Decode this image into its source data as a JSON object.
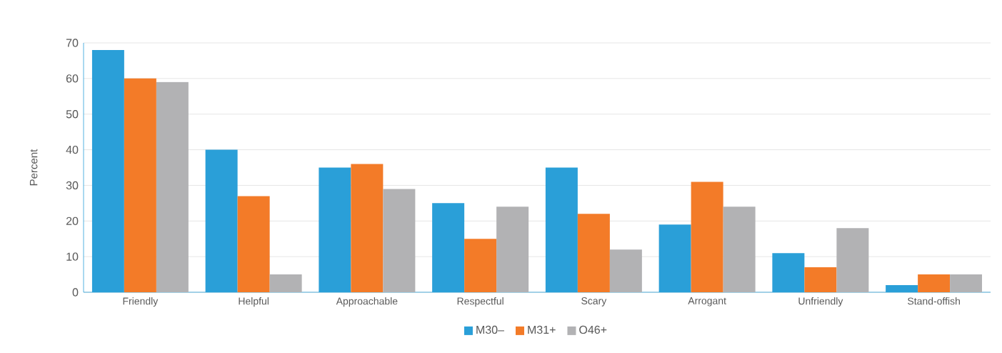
{
  "chart_data": {
    "type": "bar",
    "ylabel": "Percent",
    "categories": [
      "Friendly",
      "Helpful",
      "Approachable",
      "Respectful",
      "Scary",
      "Arrogant",
      "Unfriendly",
      "Stand-offish"
    ],
    "series": [
      {
        "name": "M30–",
        "color": "#2a9fd8",
        "values": [
          68,
          40,
          35,
          25,
          35,
          19,
          11,
          2
        ]
      },
      {
        "name": "M31+",
        "color": "#f37b28",
        "values": [
          60,
          27,
          36,
          15,
          22,
          31,
          7,
          5
        ]
      },
      {
        "name": "O46+",
        "color": "#b2b2b4",
        "values": [
          59,
          5,
          29,
          24,
          12,
          24,
          18,
          5
        ]
      }
    ],
    "ylim": [
      0,
      70
    ],
    "yticks": [
      0,
      10,
      20,
      30,
      40,
      50,
      60,
      70
    ],
    "grid": "y",
    "legend": "bottom"
  }
}
